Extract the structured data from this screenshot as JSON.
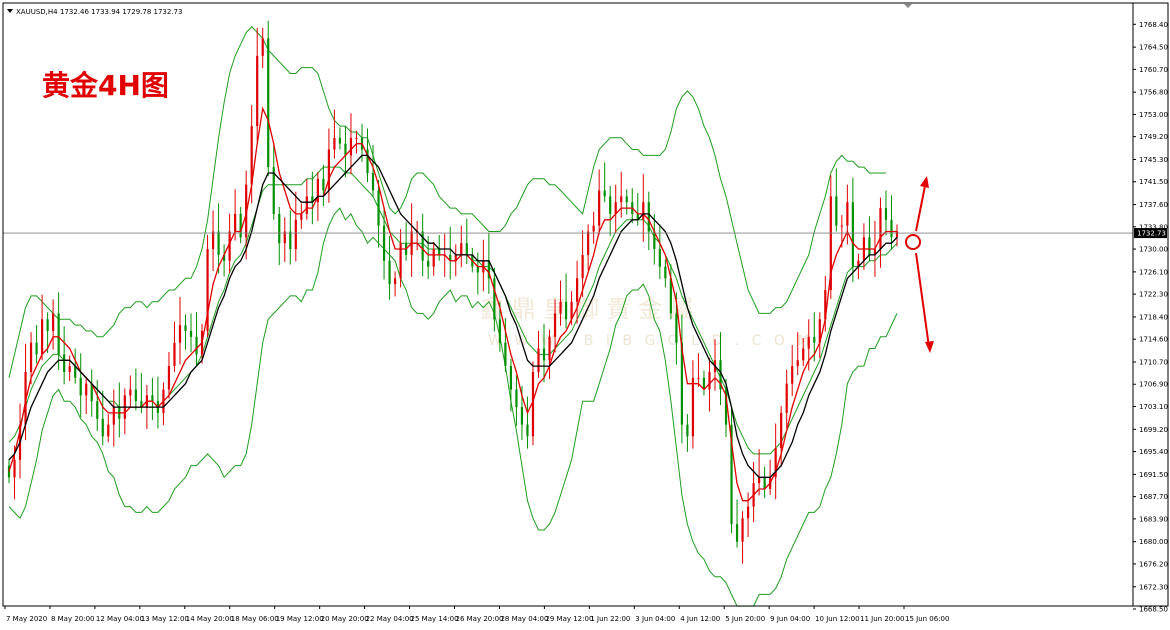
{
  "header": {
    "symbol": "XAUUSD,H4",
    "ohlc": "1732.46 1733.94 1729.78 1732.73"
  },
  "annotation": {
    "title": "黄金4H图"
  },
  "watermark": {
    "cn": "鑫 鼎 皇 御 貴 金 屬",
    "url": "W W W . B I B G O L D . C O M"
  },
  "current_price_label": "1732.73",
  "chart_data": {
    "type": "candlestick",
    "title": "黄金4H图",
    "ylim": [
      1668.5,
      1770.5
    ],
    "y_ticks": [
      "1768.40",
      "1764.50",
      "1760.70",
      "1756.80",
      "1753.00",
      "1749.20",
      "1745.30",
      "1741.50",
      "1737.60",
      "1733.80",
      "1730.00",
      "1726.10",
      "1722.30",
      "1718.40",
      "1714.60",
      "1710.70",
      "1706.90",
      "1703.10",
      "1699.20",
      "1695.40",
      "1691.50",
      "1687.70",
      "1683.90",
      "1680.00",
      "1676.20",
      "1672.30",
      "1668.50"
    ],
    "x_labels": [
      "7 May 2020",
      "8 May 20:00",
      "12 May 04:00",
      "13 May 12:00",
      "14 May 20:00",
      "18 May 06:00",
      "19 May 12:00",
      "20 May 20:00",
      "22 May 04:00",
      "25 May 14:00",
      "26 May 20:00",
      "28 May 04:00",
      "29 May 12:00",
      "1 Jun 22:00",
      "3 Jun 04:00",
      "4 Jun 12:00",
      "5 Jun 20:00",
      "9 Jun 04:00",
      "10 Jun 12:00",
      "11 Jun 20:00",
      "15 Jun 06:00"
    ],
    "current_price": 1732.73,
    "colors": {
      "up": "#e00000",
      "down": "#009000",
      "bands": "#1e9e1e",
      "fast_ma": "#e00000",
      "slow_ma": "#000000",
      "arrows": "#e00000"
    },
    "series": [
      {
        "name": "close",
        "values": [
          1691,
          1694,
          1700,
          1709,
          1714,
          1712,
          1718,
          1716,
          1719,
          1712,
          1709,
          1710,
          1708,
          1705,
          1707,
          1704,
          1701,
          1698,
          1700,
          1703,
          1701,
          1705,
          1706,
          1704,
          1703,
          1705,
          1704,
          1702,
          1706,
          1710,
          1714,
          1717,
          1716,
          1715,
          1712,
          1716,
          1730,
          1733,
          1729,
          1728,
          1733,
          1736,
          1732,
          1741,
          1751,
          1763,
          1766,
          1744,
          1736,
          1731,
          1733,
          1730,
          1735,
          1736,
          1739,
          1738,
          1742,
          1740,
          1747,
          1749,
          1748,
          1746,
          1749,
          1749,
          1747,
          1743,
          1740,
          1734,
          1728,
          1724,
          1725,
          1731,
          1729,
          1733,
          1733,
          1728,
          1727,
          1730,
          1729,
          1729,
          1728,
          1729,
          1731,
          1729,
          1727,
          1726,
          1728,
          1725,
          1718,
          1714,
          1710,
          1706,
          1703,
          1700,
          1698,
          1709,
          1713,
          1711,
          1715,
          1719,
          1721,
          1718,
          1721,
          1725,
          1729,
          1733,
          1734,
          1740,
          1739,
          1736,
          1738,
          1739,
          1738,
          1736,
          1735,
          1738,
          1733,
          1730,
          1727,
          1725,
          1719,
          1714,
          1700,
          1698,
          1708,
          1708,
          1706,
          1709,
          1711,
          1706,
          1700,
          1683,
          1680,
          1684,
          1686,
          1690,
          1691,
          1689,
          1691,
          1696,
          1702,
          1707,
          1710,
          1711,
          1713,
          1715,
          1714,
          1718,
          1723,
          1739,
          1734,
          1734,
          1738,
          1727,
          1728,
          1732,
          1729,
          1730,
          1737,
          1735,
          1732,
          1733
        ]
      },
      {
        "name": "fast MA",
        "values": [
          1692,
          1695,
          1699,
          1704,
          1708,
          1710,
          1712,
          1713,
          1715,
          1715,
          1714,
          1713,
          1711,
          1709,
          1708,
          1707,
          1705,
          1703,
          1702,
          1702,
          1702,
          1702,
          1703,
          1703,
          1703,
          1704,
          1704,
          1703,
          1704,
          1705,
          1707,
          1709,
          1711,
          1712,
          1713,
          1714,
          1719,
          1724,
          1727,
          1729,
          1731,
          1733,
          1733,
          1736,
          1741,
          1748,
          1754,
          1752,
          1748,
          1743,
          1740,
          1737,
          1736,
          1736,
          1737,
          1737,
          1739,
          1739,
          1742,
          1744,
          1745,
          1746,
          1747,
          1748,
          1748,
          1746,
          1744,
          1741,
          1737,
          1733,
          1730,
          1730,
          1730,
          1731,
          1731,
          1730,
          1729,
          1729,
          1729,
          1729,
          1728,
          1728,
          1729,
          1729,
          1728,
          1727,
          1727,
          1726,
          1723,
          1720,
          1716,
          1712,
          1709,
          1705,
          1702,
          1704,
          1707,
          1708,
          1710,
          1713,
          1715,
          1716,
          1718,
          1720,
          1723,
          1726,
          1729,
          1733,
          1735,
          1735,
          1736,
          1737,
          1737,
          1737,
          1736,
          1736,
          1735,
          1733,
          1731,
          1729,
          1725,
          1721,
          1713,
          1707,
          1707,
          1707,
          1706,
          1707,
          1708,
          1707,
          1705,
          1697,
          1690,
          1687,
          1687,
          1688,
          1689,
          1689,
          1690,
          1692,
          1695,
          1699,
          1703,
          1706,
          1709,
          1711,
          1712,
          1714,
          1718,
          1726,
          1729,
          1731,
          1733,
          1731,
          1730,
          1730,
          1730,
          1730,
          1732,
          1733,
          1733,
          1733
        ]
      },
      {
        "name": "slow MA",
        "values": [
          1694,
          1695,
          1697,
          1700,
          1703,
          1705,
          1707,
          1709,
          1710,
          1711,
          1711,
          1711,
          1710,
          1709,
          1708,
          1707,
          1706,
          1705,
          1704,
          1703,
          1703,
          1703,
          1703,
          1703,
          1703,
          1703,
          1703,
          1703,
          1703,
          1704,
          1705,
          1706,
          1707,
          1709,
          1710,
          1711,
          1714,
          1717,
          1720,
          1722,
          1725,
          1727,
          1728,
          1730,
          1733,
          1737,
          1741,
          1743,
          1743,
          1742,
          1741,
          1740,
          1739,
          1738,
          1738,
          1738,
          1739,
          1739,
          1740,
          1741,
          1742,
          1743,
          1744,
          1745,
          1746,
          1746,
          1745,
          1744,
          1742,
          1740,
          1738,
          1736,
          1735,
          1734,
          1733,
          1732,
          1731,
          1731,
          1730,
          1730,
          1730,
          1729,
          1729,
          1729,
          1729,
          1728,
          1728,
          1728,
          1726,
          1724,
          1722,
          1719,
          1717,
          1714,
          1711,
          1710,
          1710,
          1710,
          1710,
          1711,
          1712,
          1713,
          1714,
          1716,
          1718,
          1720,
          1722,
          1725,
          1727,
          1729,
          1731,
          1733,
          1734,
          1735,
          1735,
          1736,
          1736,
          1735,
          1734,
          1733,
          1731,
          1728,
          1724,
          1720,
          1717,
          1715,
          1713,
          1711,
          1710,
          1709,
          1707,
          1703,
          1698,
          1695,
          1693,
          1692,
          1691,
          1691,
          1691,
          1692,
          1693,
          1695,
          1697,
          1700,
          1702,
          1705,
          1707,
          1709,
          1712,
          1716,
          1719,
          1722,
          1725,
          1726,
          1727,
          1728,
          1729,
          1729,
          1730,
          1731,
          1731,
          1732
        ]
      },
      {
        "name": "upper band",
        "values": [
          1708,
          1712,
          1716,
          1720,
          1722,
          1722,
          1721,
          1720,
          1719,
          1718,
          1718,
          1718,
          1717,
          1717,
          1716,
          1716,
          1715,
          1715,
          1716,
          1717,
          1719,
          1720,
          1720,
          1721,
          1721,
          1720,
          1721,
          1721,
          1722,
          1723,
          1723,
          1724,
          1725,
          1725,
          1727,
          1730,
          1735,
          1742,
          1749,
          1755,
          1760,
          1763,
          1765,
          1767,
          1768,
          1767,
          1766,
          1764,
          1763,
          1762,
          1761,
          1760,
          1760,
          1761,
          1761,
          1761,
          1760,
          1757,
          1754,
          1752,
          1751,
          1751,
          1750,
          1750,
          1749,
          1749,
          1746,
          1743,
          1740,
          1737,
          1736,
          1737,
          1739,
          1742,
          1743,
          1743,
          1742,
          1741,
          1739,
          1738,
          1737,
          1737,
          1736,
          1736,
          1736,
          1735,
          1734,
          1733,
          1733,
          1733,
          1734,
          1736,
          1737,
          1739,
          1741,
          1742,
          1742,
          1742,
          1741,
          1741,
          1740,
          1739,
          1738,
          1737,
          1736,
          1740,
          1744,
          1747,
          1748,
          1749,
          1749,
          1749,
          1748,
          1747,
          1747,
          1746,
          1746,
          1746,
          1746,
          1747,
          1750,
          1754,
          1756,
          1757,
          1756,
          1754,
          1751,
          1749,
          1746,
          1742,
          1739,
          1735,
          1731,
          1727,
          1723,
          1721,
          1719,
          1719,
          1719,
          1720,
          1720,
          1721,
          1723,
          1725,
          1727,
          1729,
          1733,
          1736,
          1739,
          1743,
          1745,
          1746,
          1745,
          1745,
          1744,
          1744,
          1743,
          1743,
          1743,
          1743
        ]
      },
      {
        "name": "middle band",
        "values": [
          1697,
          1698,
          1700,
          1703,
          1706,
          1708,
          1710,
          1711,
          1712,
          1712,
          1711,
          1711,
          1710,
          1709,
          1708,
          1707,
          1706,
          1705,
          1704,
          1704,
          1703,
          1703,
          1703,
          1703,
          1703,
          1703,
          1703,
          1703,
          1704,
          1705,
          1706,
          1707,
          1708,
          1709,
          1710,
          1712,
          1715,
          1718,
          1721,
          1723,
          1726,
          1728,
          1729,
          1731,
          1734,
          1737,
          1740,
          1741,
          1741,
          1741,
          1741,
          1741,
          1741,
          1741,
          1742,
          1742,
          1743,
          1744,
          1744,
          1744,
          1744,
          1743,
          1743,
          1742,
          1741,
          1740,
          1739,
          1737,
          1735,
          1733,
          1732,
          1731,
          1731,
          1731,
          1731,
          1731,
          1730,
          1730,
          1730,
          1730,
          1730,
          1729,
          1729,
          1729,
          1728,
          1728,
          1727,
          1727,
          1726,
          1724,
          1722,
          1720,
          1718,
          1716,
          1714,
          1713,
          1712,
          1712,
          1712,
          1713,
          1714,
          1715,
          1716,
          1718,
          1720,
          1722,
          1724,
          1727,
          1729,
          1731,
          1733,
          1734,
          1735,
          1735,
          1735,
          1735,
          1734,
          1732,
          1731,
          1729,
          1727,
          1725,
          1722,
          1720,
          1718,
          1716,
          1714,
          1712,
          1710,
          1708,
          1706,
          1703,
          1700,
          1698,
          1696,
          1695,
          1695,
          1695,
          1695,
          1696,
          1697,
          1699,
          1701,
          1703,
          1705,
          1707,
          1709,
          1711,
          1714,
          1717,
          1720,
          1723,
          1726,
          1727,
          1727,
          1727,
          1728,
          1728,
          1729,
          1729,
          1730,
          1731
        ]
      },
      {
        "name": "lower band",
        "values": [
          1686,
          1685,
          1684,
          1686,
          1690,
          1694,
          1699,
          1702,
          1705,
          1706,
          1704,
          1704,
          1703,
          1701,
          1700,
          1698,
          1697,
          1695,
          1692,
          1691,
          1688,
          1686,
          1686,
          1685,
          1685,
          1686,
          1685,
          1685,
          1686,
          1687,
          1689,
          1690,
          1691,
          1693,
          1693,
          1694,
          1695,
          1694,
          1693,
          1691,
          1692,
          1693,
          1693,
          1695,
          1700,
          1707,
          1714,
          1718,
          1719,
          1720,
          1721,
          1722,
          1722,
          1721,
          1723,
          1723,
          1726,
          1731,
          1734,
          1736,
          1737,
          1735,
          1736,
          1734,
          1733,
          1731,
          1732,
          1731,
          1730,
          1729,
          1728,
          1725,
          1723,
          1720,
          1719,
          1719,
          1718,
          1719,
          1721,
          1722,
          1723,
          1721,
          1722,
          1722,
          1720,
          1721,
          1720,
          1721,
          1719,
          1715,
          1710,
          1704,
          1699,
          1693,
          1687,
          1684,
          1682,
          1682,
          1683,
          1685,
          1688,
          1691,
          1694,
          1699,
          1704,
          1704,
          1704,
          1707,
          1710,
          1713,
          1717,
          1719,
          1722,
          1723,
          1723,
          1724,
          1722,
          1718,
          1716,
          1711,
          1704,
          1696,
          1688,
          1683,
          1680,
          1678,
          1677,
          1675,
          1674,
          1674,
          1673,
          1671,
          1669,
          1669,
          1669,
          1669,
          1671,
          1671,
          1671,
          1672,
          1674,
          1677,
          1679,
          1681,
          1683,
          1685,
          1685,
          1686,
          1689,
          1691,
          1695,
          1700,
          1707,
          1709,
          1710,
          1710,
          1713,
          1713,
          1715,
          1715,
          1717,
          1719
        ]
      }
    ]
  }
}
